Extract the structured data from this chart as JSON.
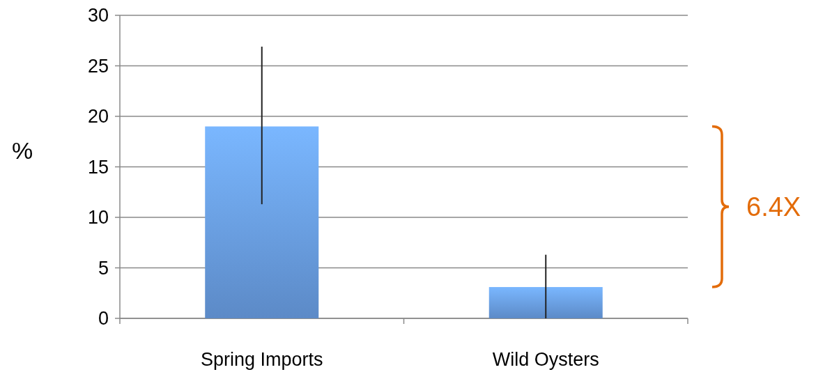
{
  "chart_data": {
    "type": "bar",
    "ylabel": "%",
    "categories": [
      "Spring Imports",
      "Wild Oysters"
    ],
    "values": [
      19,
      3.1
    ],
    "color": "#6a9fe6",
    "errors": [
      [
        11.3,
        26.9
      ],
      [
        0,
        6.3
      ]
    ],
    "ylim": [
      0,
      30
    ],
    "yticks": [
      0,
      5,
      10,
      15,
      20,
      25,
      30
    ],
    "grid": "y",
    "annotations": [
      "6.4X"
    ]
  }
}
